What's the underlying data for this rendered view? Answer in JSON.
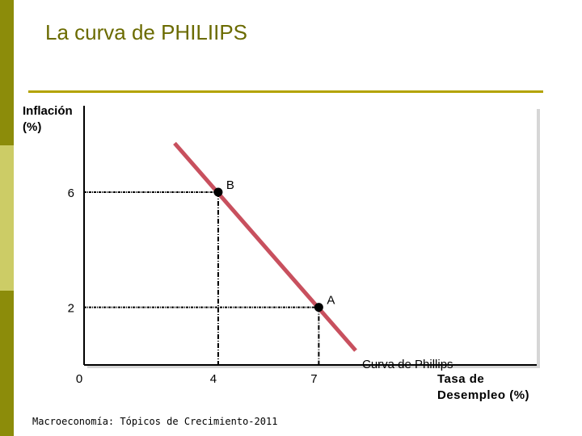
{
  "title": "La curva de PHILIIPS",
  "footer": "Macroeconomía: Tópicos de Crecimiento-2011",
  "chart_data": {
    "type": "line",
    "y_label": "Inflación (%)",
    "x_label": "Tasa de Desempleo (%)",
    "xlim": [
      0,
      13.5
    ],
    "ylim": [
      0,
      9
    ],
    "xticks": [
      0,
      4,
      7
    ],
    "yticks": [
      2,
      6
    ],
    "series": [
      {
        "name": "Curva de Phillips",
        "color": "#c8505e",
        "x": [
          2.7,
          8.1
        ],
        "values": [
          7.7,
          0.5
        ]
      }
    ],
    "points": [
      {
        "label": "B",
        "x": 4,
        "y": 6
      },
      {
        "label": "A",
        "x": 7,
        "y": 2
      }
    ]
  }
}
